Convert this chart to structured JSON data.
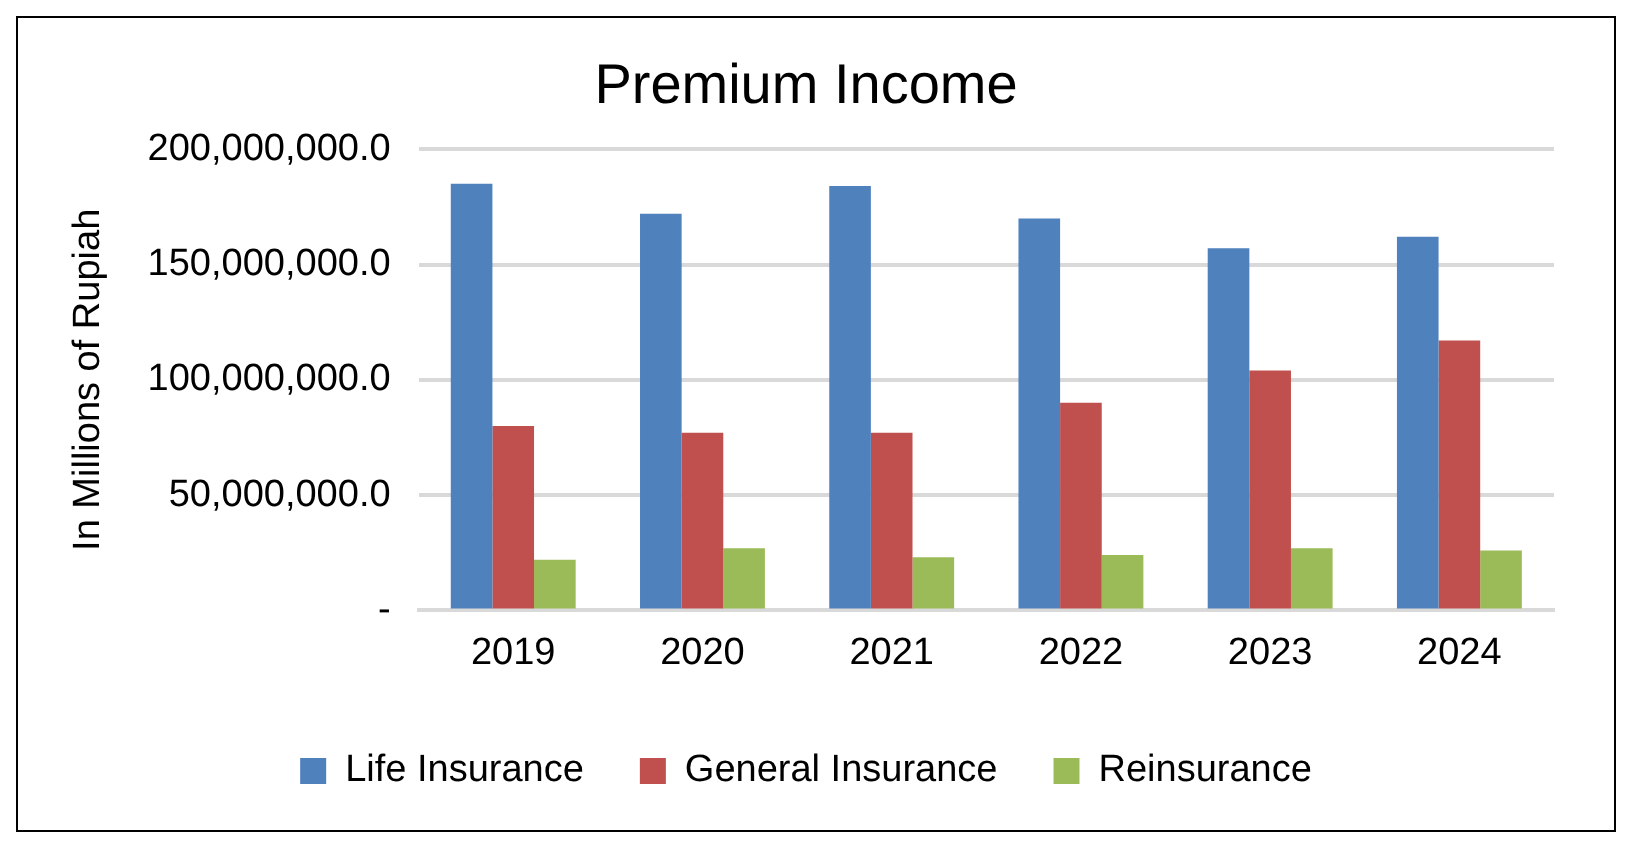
{
  "chart_data": {
    "type": "bar",
    "title": "Premium Income",
    "ylabel": "In Millions of Rupiah",
    "categories": [
      "2019",
      "2020",
      "2021",
      "2022",
      "2023",
      "2024"
    ],
    "series": [
      {
        "name": "Life Insurance",
        "color": "#4f81bd",
        "values": [
          185000000,
          172000000,
          184000000,
          170000000,
          157000000,
          162000000
        ]
      },
      {
        "name": "General Insurance",
        "color": "#c0504d",
        "values": [
          80000000,
          77000000,
          77000000,
          90000000,
          104000000,
          117000000
        ]
      },
      {
        "name": "Reinsurance",
        "color": "#9bbb59",
        "values": [
          22000000,
          27000000,
          23000000,
          24000000,
          27000000,
          26000000
        ]
      }
    ],
    "ylim": [
      0,
      200000000
    ],
    "yticks": [
      {
        "value": 0,
        "label": "-"
      },
      {
        "value": 50000000,
        "label": "50,000,000.0"
      },
      {
        "value": 100000000,
        "label": "100,000,000.0"
      },
      {
        "value": 150000000,
        "label": "150,000,000.0"
      },
      {
        "value": 200000000,
        "label": "200,000,000.0"
      }
    ],
    "grid": "y",
    "legend": "bottom"
  }
}
